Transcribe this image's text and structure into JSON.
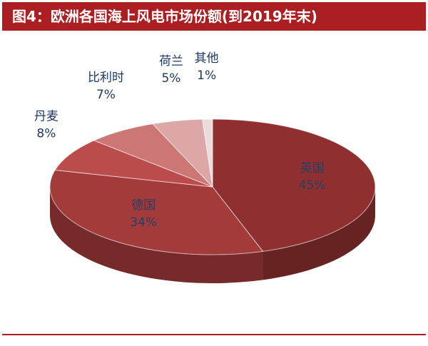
{
  "figure": {
    "title": "图4：欧洲各国海上风电市场份额(到2019年末)"
  },
  "chart_data": {
    "type": "pie",
    "title": "图4：欧洲各国海上风电市场份额(到2019年末)",
    "slices": [
      {
        "label": "英国",
        "value": 45,
        "display": "45%",
        "color": "#8f2f2f"
      },
      {
        "label": "德国",
        "value": 34,
        "display": "34%",
        "color": "#a43b3b"
      },
      {
        "label": "丹麦",
        "value": 8,
        "display": "8%",
        "color": "#bb4c4c"
      },
      {
        "label": "比利时",
        "value": 7,
        "display": "7%",
        "color": "#cd7676"
      },
      {
        "label": "荷兰",
        "value": 5,
        "display": "5%",
        "color": "#dea7a7"
      },
      {
        "label": "其他",
        "value": 1,
        "display": "1%",
        "color": "#eddcdc"
      }
    ],
    "legend": "none",
    "style": "3d"
  }
}
